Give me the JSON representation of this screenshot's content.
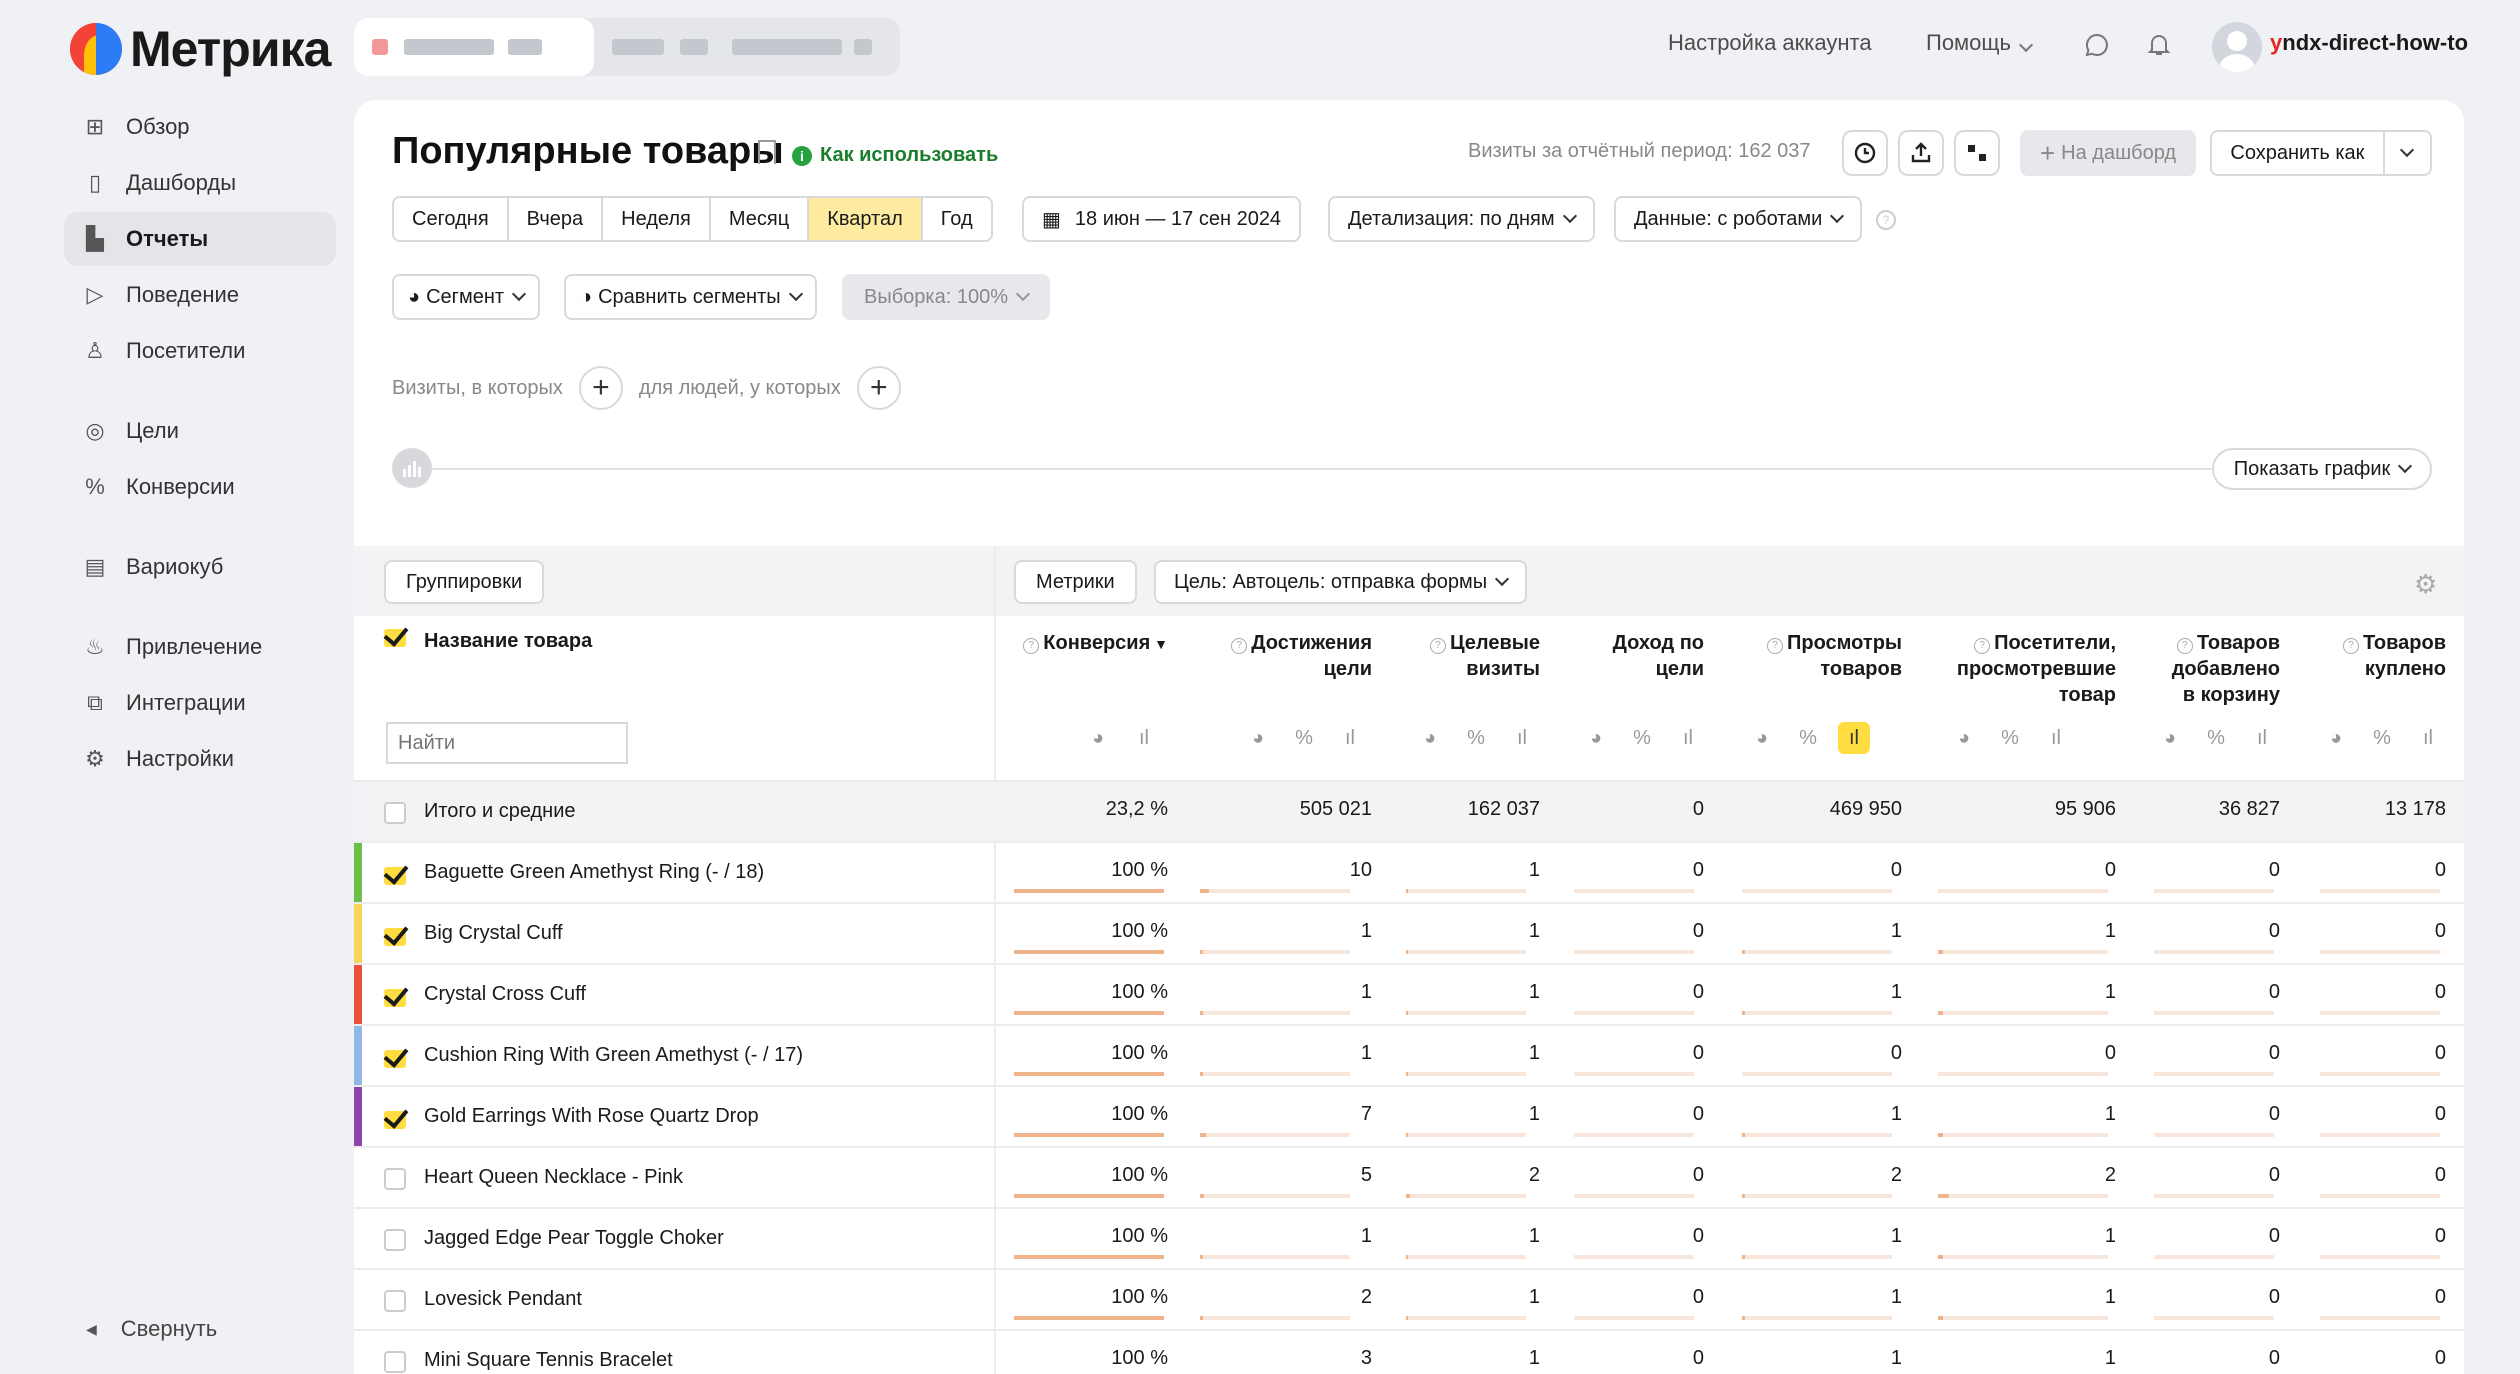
{
  "app": {
    "logo_text": "Метрика",
    "account_settings": "Настройка аккаунта",
    "help": "Помощь",
    "username_first": "y",
    "username_rest": "ndx-direct-how-to"
  },
  "sidebar": {
    "items": [
      {
        "label": "Обзор",
        "icon": "grid-icon"
      },
      {
        "label": "Дашборды",
        "icon": "dashboards-icon"
      },
      {
        "label": "Отчеты",
        "icon": "reports-icon",
        "active": true
      },
      {
        "label": "Поведение",
        "icon": "play-icon"
      },
      {
        "label": "Посетители",
        "icon": "user-icon"
      },
      {
        "label": "Цели",
        "icon": "target-icon"
      },
      {
        "label": "Конверсии",
        "icon": "percent-icon"
      },
      {
        "label": "Вариокуб",
        "icon": "variocube-icon"
      },
      {
        "label": "Привлечение",
        "icon": "flame-icon"
      },
      {
        "label": "Интеграции",
        "icon": "puzzle-icon"
      },
      {
        "label": "Настройки",
        "icon": "gear-icon"
      }
    ],
    "collapse": "Свернуть"
  },
  "report": {
    "title": "Популярные товары",
    "how_to_use": "Как использовать",
    "visits_info": "Визиты за отчётный период: 162 037",
    "to_dashboard": "На дашборд",
    "save_as": "Сохранить как",
    "periods": [
      "Сегодня",
      "Вчера",
      "Неделя",
      "Месяц",
      "Квартал",
      "Год"
    ],
    "active_period": "Квартал",
    "date_range": "18 июн — 17 сен 2024",
    "detail": "Детализация: по дням",
    "data_mode": "Данные: с роботами",
    "segment": "Сегмент",
    "compare": "Сравнить сегменты",
    "sample": "Выборка: 100%",
    "filter_visits": "Визиты, в которых",
    "filter_people": "для людей, у которых",
    "show_chart": "Показать график"
  },
  "table": {
    "groupings": "Группировки",
    "metrics": "Метрики",
    "goal": "Цель: Автоцель: отправка формы",
    "name_header": "Название товара",
    "search_placeholder": "Найти",
    "columns": [
      {
        "l1": "Конверсия",
        "l2": "",
        "l3": "",
        "sort": "▼"
      },
      {
        "l1": "Достижения",
        "l2": "цели",
        "l3": ""
      },
      {
        "l1": "Целевые",
        "l2": "визиты",
        "l3": ""
      },
      {
        "l1": "Доход по",
        "l2": "цели",
        "l3": ""
      },
      {
        "l1": "Просмотры",
        "l2": "товаров",
        "l3": ""
      },
      {
        "l1": "Посетители,",
        "l2": "просмотревшие",
        "l3": "товар"
      },
      {
        "l1": "Товаров",
        "l2": "добавлено",
        "l3": "в корзину"
      },
      {
        "l1": "Товаров",
        "l2": "куплено",
        "l3": ""
      }
    ],
    "total": {
      "label": "Итого и средние",
      "values": [
        "23,2 %",
        "505 021",
        "162 037",
        "0",
        "469 950",
        "95 906",
        "36 827",
        "13 178"
      ]
    },
    "rows": [
      {
        "name": "Baguette Green Amethyst Ring (- / 18)",
        "checked": true,
        "color": "#6cc04a",
        "values": [
          "100 %",
          "10",
          "1",
          "0",
          "0",
          "0",
          "0",
          "0"
        ]
      },
      {
        "name": "Big Crystal Cuff",
        "checked": true,
        "color": "#f6d55c",
        "values": [
          "100 %",
          "1",
          "1",
          "0",
          "1",
          "1",
          "0",
          "0"
        ]
      },
      {
        "name": "Crystal Cross Cuff",
        "checked": true,
        "color": "#e8513b",
        "values": [
          "100 %",
          "1",
          "1",
          "0",
          "1",
          "1",
          "0",
          "0"
        ]
      },
      {
        "name": "Cushion Ring With Green Amethyst (- / 17)",
        "checked": true,
        "color": "#8fb8e6",
        "values": [
          "100 %",
          "1",
          "1",
          "0",
          "0",
          "0",
          "0",
          "0"
        ]
      },
      {
        "name": "Gold Earrings With Rose Quartz Drop",
        "checked": true,
        "color": "#8e44ad",
        "values": [
          "100 %",
          "7",
          "1",
          "0",
          "1",
          "1",
          "0",
          "0"
        ]
      },
      {
        "name": "Heart Queen Necklace - Pink",
        "checked": false,
        "color": "",
        "values": [
          "100 %",
          "5",
          "2",
          "0",
          "2",
          "2",
          "0",
          "0"
        ]
      },
      {
        "name": "Jagged Edge Pear Toggle Choker",
        "checked": false,
        "color": "",
        "values": [
          "100 %",
          "1",
          "1",
          "0",
          "1",
          "1",
          "0",
          "0"
        ]
      },
      {
        "name": "Lovesick Pendant",
        "checked": false,
        "color": "",
        "values": [
          "100 %",
          "2",
          "1",
          "0",
          "1",
          "1",
          "0",
          "0"
        ]
      },
      {
        "name": "Mini Square Tennis Bracelet",
        "checked": false,
        "color": "",
        "values": [
          "100 %",
          "3",
          "1",
          "0",
          "1",
          "1",
          "0",
          "0"
        ]
      }
    ]
  },
  "colors": {
    "accent_yellow": "#ffdd40",
    "period_active": "#ffeba0",
    "link_green": "#1a7d2b"
  }
}
